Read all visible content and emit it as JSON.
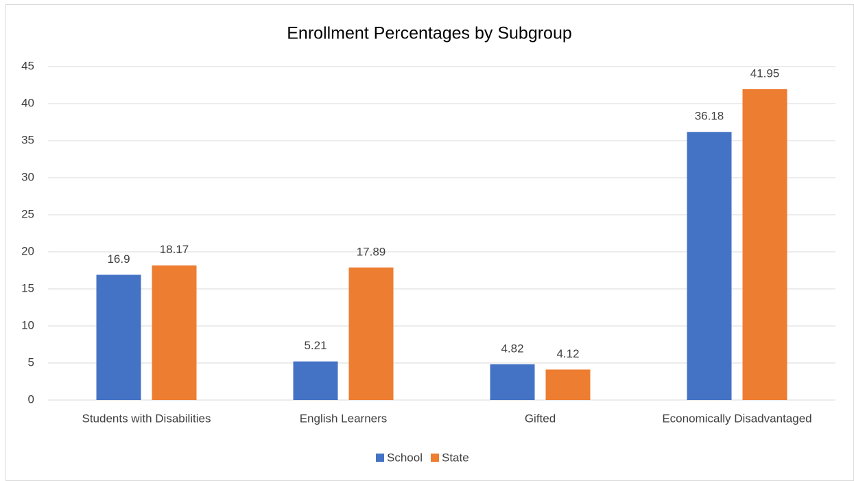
{
  "chart_data": {
    "type": "bar",
    "title": "Enrollment Percentages by Subgroup",
    "categories": [
      "Students with Disabilities",
      "English Learners",
      "Gifted",
      "Economically Disadvantaged"
    ],
    "series": [
      {
        "name": "School",
        "color": "#4472c4",
        "values": [
          16.9,
          5.21,
          4.82,
          36.18
        ]
      },
      {
        "name": "State",
        "color": "#ed7d31",
        "values": [
          18.17,
          17.89,
          4.12,
          41.95
        ]
      }
    ],
    "ylim": [
      0,
      45
    ],
    "yticks": [
      0,
      5,
      10,
      15,
      20,
      25,
      30,
      35,
      40,
      45
    ],
    "grid": true,
    "legend": "bottom"
  }
}
